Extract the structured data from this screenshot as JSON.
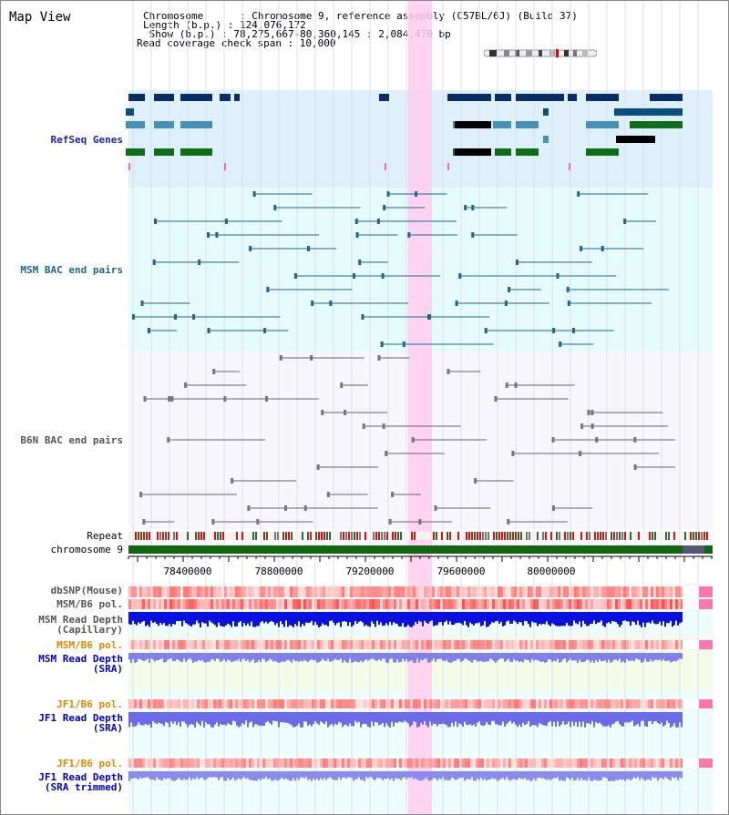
{
  "header": {
    "title": "Map View",
    "chromosome_line": "Chromosome      : Chromosome 9, reference assembly (C57BL/6J) (Build 37)",
    "length_line": "Length (b.p.) : 124,076,172",
    "show_line": " Show (b.p.) : 78,275,667-80,360,145 : 2,084,479 bp",
    "coverage_line": "Read coverage check span : 10,000"
  },
  "tracks": {
    "refseq": "RefSeq Genes",
    "msm_bac": "MSM BAC end pairs",
    "b6n_bac": "B6N BAC end pairs",
    "repeat": "Repeat",
    "chromosome": "chromosome 9",
    "dbsnp": "dbSNP(Mouse)",
    "msm_b6_pol": "MSM/B6 pol.",
    "msm_depth_cap": "MSM Read Depth\n(Capillary)",
    "msm_b6_pol_sra": "MSM/B6 pol.",
    "msm_depth_sra": "MSM Read Depth\n(SRA)",
    "jf1_b6_pol": "JF1/B6 pol.",
    "jf1_depth_sra": "JF1 Read Depth\n(SRA)",
    "jf1_b6_pol_trim": "JF1/B6 pol.",
    "jf1_depth_trim": "JF1 Read Depth\n(SRA trimmed)"
  },
  "axis": {
    "ticks": [
      "78400000",
      "78800000",
      "79200000",
      "79600000",
      "80000000"
    ]
  },
  "colors": {
    "refseq_label": "#2222bb",
    "msm_label": "#226688",
    "b6n_label": "#555555",
    "orange_label": "#dd8800",
    "blue_label": "#0000cc",
    "highlight": "#ffccee",
    "chrom_bar": "#116611"
  }
}
